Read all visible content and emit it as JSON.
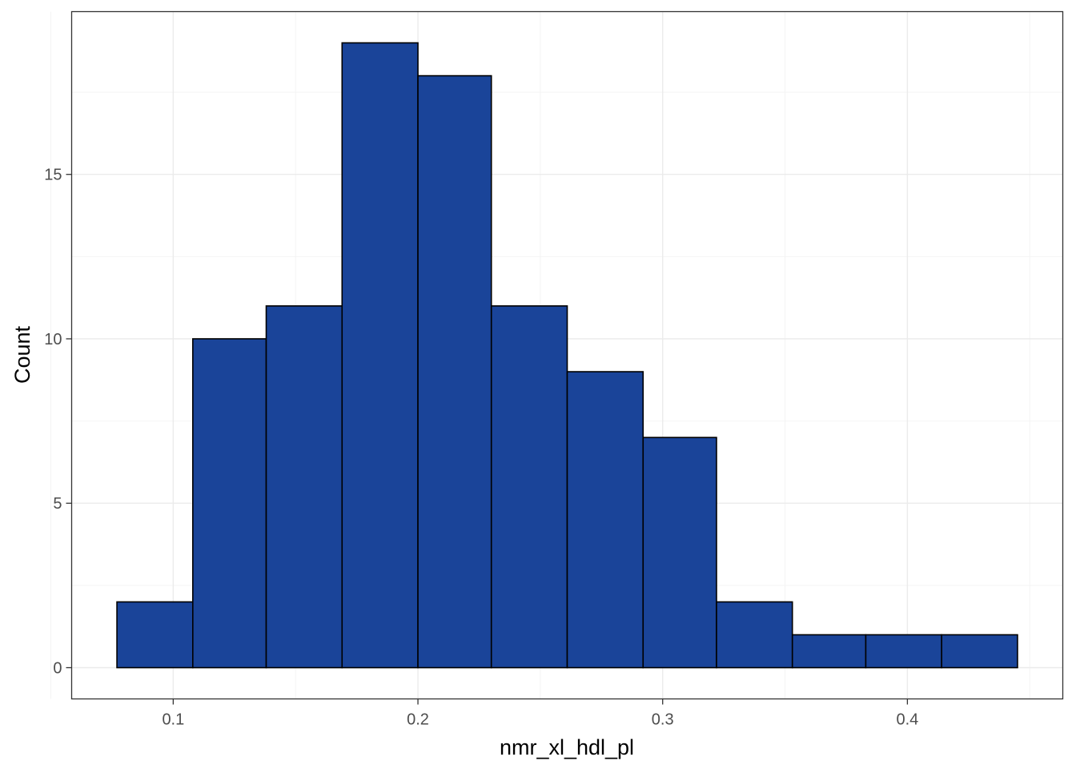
{
  "chart_data": {
    "type": "histogram",
    "title": "",
    "xlabel": "nmr_xl_hdl_pl",
    "ylabel": "Count",
    "bins": [
      {
        "x0": 0.077,
        "x1": 0.108,
        "count": 2
      },
      {
        "x0": 0.108,
        "x1": 0.138,
        "count": 10
      },
      {
        "x0": 0.138,
        "x1": 0.169,
        "count": 11
      },
      {
        "x0": 0.169,
        "x1": 0.2,
        "count": 19
      },
      {
        "x0": 0.2,
        "x1": 0.23,
        "count": 18
      },
      {
        "x0": 0.23,
        "x1": 0.261,
        "count": 11
      },
      {
        "x0": 0.261,
        "x1": 0.292,
        "count": 9
      },
      {
        "x0": 0.292,
        "x1": 0.322,
        "count": 7
      },
      {
        "x0": 0.322,
        "x1": 0.353,
        "count": 2
      },
      {
        "x0": 0.353,
        "x1": 0.383,
        "count": 1
      },
      {
        "x0": 0.383,
        "x1": 0.414,
        "count": 1
      },
      {
        "x0": 0.414,
        "x1": 0.445,
        "count": 1
      }
    ],
    "xlim": [
      0.0585,
      0.4635
    ],
    "ylim": [
      -0.95,
      19.95
    ],
    "x_ticks": [
      {
        "value": 0.1,
        "label": "0.1"
      },
      {
        "value": 0.2,
        "label": "0.2"
      },
      {
        "value": 0.3,
        "label": "0.3"
      },
      {
        "value": 0.4,
        "label": "0.4"
      }
    ],
    "y_ticks": [
      {
        "value": 0,
        "label": "0"
      },
      {
        "value": 5,
        "label": "5"
      },
      {
        "value": 10,
        "label": "10"
      },
      {
        "value": 15,
        "label": "15"
      }
    ],
    "x_minor": [
      0.05,
      0.15,
      0.25,
      0.35,
      0.45
    ],
    "y_minor": [
      2.5,
      7.5,
      12.5,
      17.5
    ],
    "grid": true,
    "legend": "none",
    "colors": {
      "bar_fill": "#1a4499",
      "bar_stroke": "#000000",
      "grid_major": "#ebebeb",
      "grid_minor": "#f4f4f4",
      "panel_border": "#333333",
      "tick": "#333333"
    }
  }
}
